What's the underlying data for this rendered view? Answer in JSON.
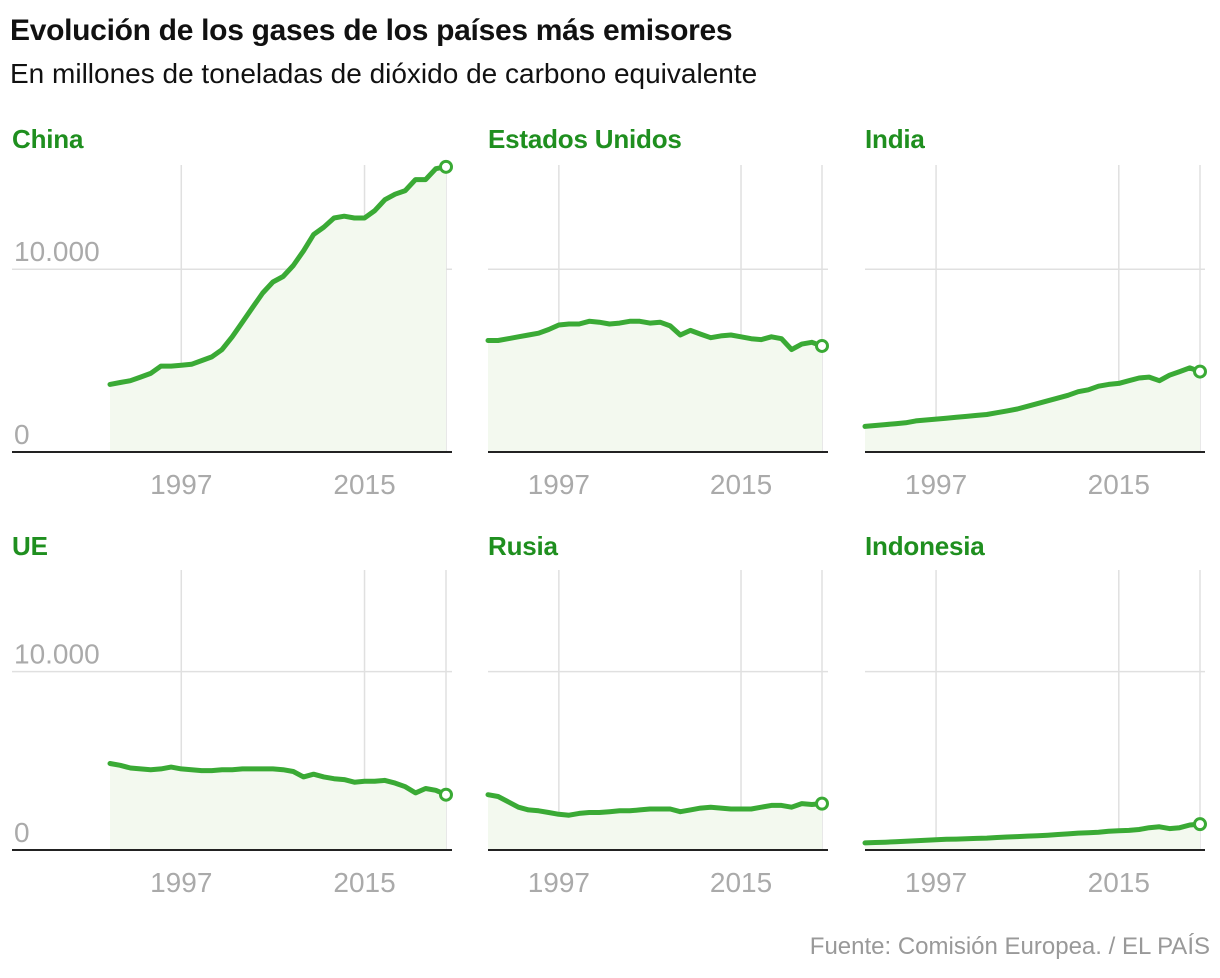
{
  "title": "Evolución de los gases de los países más emisores",
  "subtitle": "En millones de toneladas de dióxido de carbono equivalente",
  "source": "Fuente: Comisión Europea. / EL PAÍS",
  "colors": {
    "line": "#3aaa35",
    "area": "#f3f9ef",
    "title": "#1f8f1f",
    "grid": "#e0e0e0",
    "axis": "#222222",
    "tick": "#aaaaaa"
  },
  "chart_data": [
    {
      "type": "area",
      "title": "China",
      "x": [
        1990,
        1991,
        1992,
        1993,
        1994,
        1995,
        1996,
        1997,
        1998,
        1999,
        2000,
        2001,
        2002,
        2003,
        2004,
        2005,
        2006,
        2007,
        2008,
        2009,
        2010,
        2011,
        2012,
        2013,
        2014,
        2015,
        2016,
        2017,
        2018,
        2019,
        2020,
        2021,
        2022,
        2023
      ],
      "values": [
        3700,
        3800,
        3900,
        4100,
        4300,
        4700,
        4700,
        4750,
        4800,
        5000,
        5200,
        5600,
        6300,
        7100,
        7900,
        8700,
        9300,
        9600,
        10200,
        11000,
        11900,
        12300,
        12800,
        12900,
        12800,
        12800,
        13200,
        13800,
        14100,
        14300,
        14900,
        14900,
        15500,
        15600
      ],
      "ylim": [
        0,
        15700
      ],
      "yticks": [
        0,
        10000
      ],
      "ytick_labels": [
        "0",
        "10.000"
      ],
      "xticks": [
        1997,
        2015
      ],
      "xtick_labels": [
        "1997",
        "2015"
      ],
      "show_yticks": true
    },
    {
      "type": "area",
      "title": "Estados Unidos",
      "x": [
        1990,
        1991,
        1992,
        1993,
        1994,
        1995,
        1996,
        1997,
        1998,
        1999,
        2000,
        2001,
        2002,
        2003,
        2004,
        2005,
        2006,
        2007,
        2008,
        2009,
        2010,
        2011,
        2012,
        2013,
        2014,
        2015,
        2016,
        2017,
        2018,
        2019,
        2020,
        2021,
        2022,
        2023
      ],
      "values": [
        6100,
        6100,
        6200,
        6300,
        6400,
        6500,
        6700,
        6950,
        7000,
        7000,
        7150,
        7100,
        7000,
        7050,
        7150,
        7150,
        7050,
        7100,
        6900,
        6400,
        6650,
        6450,
        6250,
        6350,
        6400,
        6300,
        6200,
        6150,
        6300,
        6200,
        5600,
        5900,
        6000,
        5800
      ],
      "ylim": [
        0,
        15700
      ],
      "yticks": [
        0,
        10000
      ],
      "ytick_labels": [
        "0",
        "10.000"
      ],
      "xticks": [
        1997,
        2015
      ],
      "xtick_labels": [
        "1997",
        "2015"
      ],
      "show_yticks": false
    },
    {
      "type": "area",
      "title": "India",
      "x": [
        1990,
        1991,
        1992,
        1993,
        1994,
        1995,
        1996,
        1997,
        1998,
        1999,
        2000,
        2001,
        2002,
        2003,
        2004,
        2005,
        2006,
        2007,
        2008,
        2009,
        2010,
        2011,
        2012,
        2013,
        2014,
        2015,
        2016,
        2017,
        2018,
        2019,
        2020,
        2021,
        2022,
        2023
      ],
      "values": [
        1400,
        1450,
        1500,
        1550,
        1600,
        1700,
        1750,
        1800,
        1850,
        1900,
        1950,
        2000,
        2050,
        2150,
        2250,
        2350,
        2500,
        2650,
        2800,
        2950,
        3100,
        3300,
        3400,
        3600,
        3700,
        3750,
        3900,
        4050,
        4100,
        3900,
        4200,
        4400,
        4600,
        4400
      ],
      "ylim": [
        0,
        15700
      ],
      "yticks": [
        0,
        10000
      ],
      "ytick_labels": [
        "0",
        "10.000"
      ],
      "xticks": [
        1997,
        2015
      ],
      "xtick_labels": [
        "1997",
        "2015"
      ],
      "show_yticks": false
    },
    {
      "type": "area",
      "title": "UE",
      "x": [
        1990,
        1991,
        1992,
        1993,
        1994,
        1995,
        1996,
        1997,
        1998,
        1999,
        2000,
        2001,
        2002,
        2003,
        2004,
        2005,
        2006,
        2007,
        2008,
        2009,
        2010,
        2011,
        2012,
        2013,
        2014,
        2015,
        2016,
        2017,
        2018,
        2019,
        2020,
        2021,
        2022,
        2023
      ],
      "values": [
        4850,
        4750,
        4600,
        4550,
        4500,
        4550,
        4650,
        4550,
        4500,
        4450,
        4450,
        4500,
        4500,
        4550,
        4550,
        4550,
        4550,
        4500,
        4400,
        4100,
        4250,
        4100,
        4000,
        3950,
        3800,
        3850,
        3850,
        3900,
        3750,
        3550,
        3200,
        3450,
        3350,
        3100
      ],
      "ylim": [
        0,
        15700
      ],
      "yticks": [
        0,
        10000
      ],
      "ytick_labels": [
        "0",
        "10.000"
      ],
      "xticks": [
        1997,
        2015
      ],
      "xtick_labels": [
        "1997",
        "2015"
      ],
      "show_yticks": true
    },
    {
      "type": "area",
      "title": "Rusia",
      "x": [
        1990,
        1991,
        1992,
        1993,
        1994,
        1995,
        1996,
        1997,
        1998,
        1999,
        2000,
        2001,
        2002,
        2003,
        2004,
        2005,
        2006,
        2007,
        2008,
        2009,
        2010,
        2011,
        2012,
        2013,
        2014,
        2015,
        2016,
        2017,
        2018,
        2019,
        2020,
        2021,
        2022,
        2023
      ],
      "values": [
        3100,
        3000,
        2700,
        2400,
        2250,
        2200,
        2100,
        2000,
        1950,
        2050,
        2100,
        2100,
        2150,
        2200,
        2200,
        2250,
        2300,
        2300,
        2300,
        2150,
        2250,
        2350,
        2400,
        2350,
        2300,
        2300,
        2300,
        2400,
        2500,
        2500,
        2400,
        2600,
        2550,
        2600
      ],
      "ylim": [
        0,
        15700
      ],
      "yticks": [
        0,
        10000
      ],
      "ytick_labels": [
        "0",
        "10.000"
      ],
      "xticks": [
        1997,
        2015
      ],
      "xtick_labels": [
        "1997",
        "2015"
      ],
      "show_yticks": false
    },
    {
      "type": "area",
      "title": "Indonesia",
      "x": [
        1990,
        1991,
        1992,
        1993,
        1994,
        1995,
        1996,
        1997,
        1998,
        1999,
        2000,
        2001,
        2002,
        2003,
        2004,
        2005,
        2006,
        2007,
        2008,
        2009,
        2010,
        2011,
        2012,
        2013,
        2014,
        2015,
        2016,
        2017,
        2018,
        2019,
        2020,
        2021,
        2022,
        2023
      ],
      "values": [
        400,
        420,
        440,
        460,
        490,
        520,
        550,
        580,
        600,
        610,
        630,
        650,
        670,
        700,
        730,
        750,
        780,
        800,
        830,
        870,
        900,
        950,
        970,
        1000,
        1050,
        1080,
        1100,
        1150,
        1250,
        1300,
        1200,
        1250,
        1400,
        1450
      ],
      "ylim": [
        0,
        15700
      ],
      "yticks": [
        0,
        10000
      ],
      "ytick_labels": [
        "0",
        "10.000"
      ],
      "xticks": [
        1997,
        2015
      ],
      "xtick_labels": [
        "1997",
        "2015"
      ],
      "show_yticks": false
    }
  ]
}
